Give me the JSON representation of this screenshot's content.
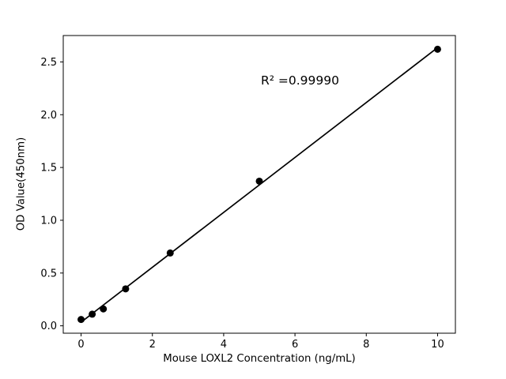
{
  "chart_data": {
    "type": "scatter",
    "title": "",
    "xlabel": "Mouse LOXL2 Concentration (ng/mL)",
    "ylabel": "OD Value(450nm)",
    "annotation": "R² =0.99990",
    "x": [
      0,
      0.3125,
      0.625,
      1.25,
      2.5,
      5,
      10
    ],
    "y": [
      0.06,
      0.11,
      0.16,
      0.35,
      0.69,
      1.37,
      2.62
    ],
    "fit_line": true,
    "xlim": [
      -0.5,
      10.5
    ],
    "ylim": [
      -0.07,
      2.75
    ],
    "xticks": [
      0,
      2,
      4,
      6,
      8,
      10
    ],
    "xtick_labels": [
      "0",
      "2",
      "4",
      "6",
      "8",
      "10"
    ],
    "yticks": [
      0.0,
      0.5,
      1.0,
      1.5,
      2.0,
      2.5
    ],
    "ytick_labels": [
      "0.0",
      "0.5",
      "1.0",
      "1.5",
      "2.0",
      "2.5"
    ],
    "marker_color": "#000000",
    "line_color": "#000000",
    "background": "#ffffff",
    "legend": "none",
    "grid": "off"
  }
}
